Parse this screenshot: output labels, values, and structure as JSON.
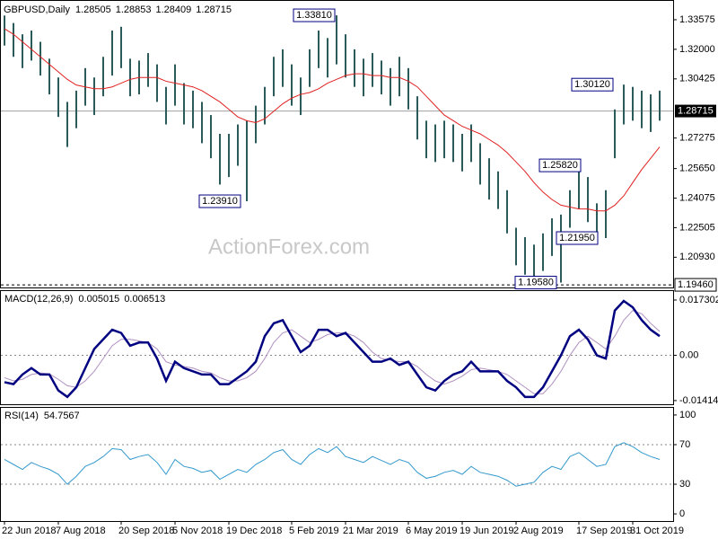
{
  "chart_data": [
    {
      "type": "ohlc",
      "title": "GBPUSD,Daily",
      "ohlc": [
        1.28505,
        1.28853,
        1.28409,
        1.28715
      ],
      "watermark": "ActionForex.com",
      "color": "#2a5a5a",
      "ylim": [
        1.1932,
        1.3453
      ],
      "yticks": [
        1.33575,
        {
          "value": 1.32,
          "label": "1.32000"
        },
        1.30425,
        1.27275,
        {
          "value": 1.2565,
          "label": "1.25650"
        },
        1.24075,
        1.22505,
        {
          "value": 1.2093,
          "label": "1.20930"
        }
      ],
      "level": {
        "value": 1.1946,
        "label": "1.19460"
      },
      "high": [
        1.338,
        1.334,
        1.328,
        1.33,
        1.324,
        1.315,
        1.305,
        1.292,
        1.298,
        1.31,
        1.305,
        1.316,
        1.33,
        1.332,
        1.315,
        1.314,
        1.318,
        1.312,
        1.3,
        1.312,
        1.302,
        1.298,
        1.292,
        1.285,
        1.275,
        1.275,
        1.28,
        1.282,
        1.29,
        1.3,
        1.316,
        1.32,
        1.312,
        1.305,
        1.32,
        1.33,
        1.326,
        1.3381,
        1.328,
        1.32,
        1.315,
        1.318,
        1.314,
        1.31,
        1.316,
        1.31,
        1.295,
        1.282,
        1.28,
        1.282,
        1.28,
        1.275,
        1.28,
        1.27,
        1.262,
        1.255,
        1.245,
        1.225,
        1.22,
        1.216,
        1.222,
        1.23,
        1.232,
        1.245,
        1.2582,
        1.252,
        1.238,
        1.245,
        1.288,
        1.3012,
        1.3,
        1.298,
        1.296,
        1.298
      ],
      "low": [
        1.322,
        1.316,
        1.31,
        1.314,
        1.306,
        1.296,
        1.284,
        1.268,
        1.278,
        1.29,
        1.285,
        1.295,
        1.306,
        1.31,
        1.295,
        1.296,
        1.3,
        1.292,
        1.28,
        1.29,
        1.28,
        1.278,
        1.27,
        1.262,
        1.248,
        1.252,
        1.258,
        1.2391,
        1.27,
        1.28,
        1.295,
        1.3,
        1.29,
        1.285,
        1.3,
        1.31,
        1.305,
        1.312,
        1.305,
        1.3,
        1.295,
        1.3,
        1.296,
        1.29,
        1.295,
        1.288,
        1.272,
        1.262,
        1.26,
        1.262,
        1.26,
        1.255,
        1.26,
        1.248,
        1.24,
        1.235,
        1.222,
        1.205,
        1.2,
        1.198,
        1.202,
        1.21,
        1.1958,
        1.225,
        1.235,
        1.228,
        1.222,
        1.2195,
        1.262,
        1.28,
        1.282,
        1.278,
        1.276,
        1.282
      ],
      "ma": {
        "color": "#e02020",
        "values": [
          1.331,
          1.328,
          1.324,
          1.32,
          1.316,
          1.312,
          1.308,
          1.304,
          1.301,
          1.3,
          1.299,
          1.299,
          1.3,
          1.302,
          1.304,
          1.305,
          1.305,
          1.305,
          1.303,
          1.302,
          1.301,
          1.3,
          1.298,
          1.295,
          1.292,
          1.288,
          1.284,
          1.282,
          1.281,
          1.283,
          1.287,
          1.291,
          1.294,
          1.296,
          1.297,
          1.299,
          1.302,
          1.304,
          1.306,
          1.307,
          1.307,
          1.306,
          1.306,
          1.305,
          1.305,
          1.303,
          1.3,
          1.295,
          1.29,
          1.285,
          1.282,
          1.279,
          1.277,
          1.275,
          1.272,
          1.269,
          1.265,
          1.26,
          1.255,
          1.249,
          1.244,
          1.24,
          1.237,
          1.236,
          1.235,
          1.235,
          1.234,
          1.234,
          1.237,
          1.242,
          1.249,
          1.256,
          1.262,
          1.268
        ]
      },
      "annotations": [
        {
          "value": 1.3381,
          "label": "1.33810"
        },
        {
          "value": 1.2391,
          "label": "1.23910"
        },
        {
          "value": 1.3012,
          "label": "1.30120"
        },
        {
          "value": 1.2582,
          "label": "1.25820"
        },
        {
          "value": 1.2195,
          "label": "1.21950"
        },
        {
          "value": 1.1958,
          "label": "1.19580"
        }
      ]
    },
    {
      "type": "line",
      "title": "MACD(12,26,9)",
      "readout": [
        0.005015,
        0.006513
      ],
      "ylim": [
        -0.0153,
        0.0201
      ],
      "yticks": [
        0.017302,
        {
          "value": 0,
          "label": "0.00"
        },
        -0.014148
      ],
      "levels": [
        0
      ],
      "series": [
        {
          "color": "#000080",
          "values": [
            -0.0084,
            -0.009,
            -0.006,
            -0.004,
            -0.006,
            -0.006,
            -0.011,
            -0.013,
            -0.01,
            -0.004,
            0.002,
            0.005,
            0.008,
            0.007,
            0.003,
            0.004,
            0.004,
            -0.001,
            -0.008,
            -0.002,
            -0.004,
            -0.005,
            -0.006,
            -0.006,
            -0.009,
            -0.009,
            -0.007,
            -0.005,
            -0.002,
            0.006,
            0.01,
            0.011,
            0.006,
            0.001,
            0.003,
            0.008,
            0.008,
            0.006,
            0.007,
            0.004,
            0.001,
            -0.002,
            -0.002,
            -0.001,
            -0.003,
            -0.002,
            -0.006,
            -0.01,
            -0.011,
            -0.008,
            -0.006,
            -0.005,
            -0.002,
            -0.005,
            -0.005,
            -0.005,
            -0.008,
            -0.01,
            -0.013,
            -0.013,
            -0.01,
            -0.005,
            0.0,
            0.006,
            0.008,
            0.005,
            0.0,
            -0.001,
            0.014,
            0.017,
            0.015,
            0.011,
            0.008,
            0.006
          ]
        },
        {
          "color": "#b090c0",
          "values": [
            -0.007,
            -0.008,
            -0.0075,
            -0.006,
            -0.0055,
            -0.0058,
            -0.0075,
            -0.0095,
            -0.01,
            -0.008,
            -0.005,
            -0.001,
            0.003,
            0.005,
            0.005,
            0.0045,
            0.004,
            0.002,
            -0.002,
            -0.003,
            -0.0035,
            -0.004,
            -0.005,
            -0.0055,
            -0.007,
            -0.008,
            -0.008,
            -0.007,
            -0.005,
            -0.001,
            0.004,
            0.007,
            0.008,
            0.006,
            0.004,
            0.005,
            0.0065,
            0.007,
            0.007,
            0.006,
            0.004,
            0.001,
            -0.001,
            -0.0015,
            -0.002,
            -0.002,
            -0.0035,
            -0.006,
            -0.008,
            -0.009,
            -0.008,
            -0.0065,
            -0.0045,
            -0.004,
            -0.0045,
            -0.005,
            -0.006,
            -0.008,
            -0.01,
            -0.012,
            -0.012,
            -0.009,
            -0.005,
            0.0,
            0.004,
            0.006,
            0.004,
            0.002,
            0.006,
            0.011,
            0.014,
            0.013,
            0.01,
            0.0075
          ]
        }
      ]
    },
    {
      "type": "line",
      "title": "RSI(14)",
      "readout": [
        54.7567
      ],
      "ylim": [
        -7.2,
        107.2
      ],
      "yticks": [
        0,
        30,
        70,
        100
      ],
      "levels": [
        30,
        70
      ],
      "series": [
        {
          "color": "#3399cc",
          "values": [
            55,
            50,
            45,
            52,
            48,
            45,
            40,
            30,
            38,
            48,
            52,
            58,
            66,
            65,
            55,
            58,
            60,
            52,
            40,
            55,
            48,
            46,
            42,
            44,
            35,
            40,
            45,
            42,
            50,
            55,
            62,
            65,
            55,
            50,
            60,
            66,
            62,
            68,
            58,
            55,
            52,
            58,
            54,
            50,
            55,
            52,
            42,
            36,
            38,
            42,
            44,
            40,
            48,
            42,
            40,
            38,
            34,
            28,
            30,
            32,
            42,
            48,
            45,
            58,
            62,
            55,
            48,
            50,
            68,
            72,
            68,
            62,
            58,
            55
          ]
        }
      ],
      "categories": [
        "22 Jun 2018",
        null,
        null,
        null,
        null,
        null,
        "7 Aug 2018",
        null,
        null,
        null,
        null,
        null,
        null,
        "20 Sep 2018",
        null,
        null,
        null,
        null,
        null,
        "5 Nov 2018",
        null,
        null,
        null,
        null,
        null,
        "19 Dec 2018",
        null,
        null,
        null,
        null,
        null,
        null,
        "5 Feb 2019",
        null,
        null,
        null,
        null,
        null,
        "21 Mar 2019",
        null,
        null,
        null,
        null,
        null,
        null,
        "6 May 2019",
        null,
        null,
        null,
        null,
        null,
        "19 Jun 2019",
        null,
        null,
        null,
        null,
        null,
        "2 Aug 2019",
        null,
        null,
        null,
        null,
        null,
        null,
        "17 Sep 2019",
        null,
        null,
        null,
        null,
        null,
        "31 Oct 2019",
        null,
        null,
        null
      ]
    }
  ]
}
